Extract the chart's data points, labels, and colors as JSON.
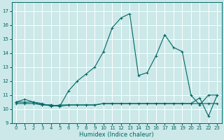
{
  "xlabel": "Humidex (Indice chaleur)",
  "bg_color": "#cce8e8",
  "grid_color": "#ffffff",
  "line_color": "#006666",
  "xlim": [
    -0.5,
    23.5
  ],
  "ylim": [
    9,
    17.6
  ],
  "yticks": [
    9,
    10,
    11,
    12,
    13,
    14,
    15,
    16,
    17
  ],
  "xticks": [
    0,
    1,
    2,
    3,
    4,
    5,
    6,
    7,
    8,
    9,
    10,
    11,
    12,
    13,
    14,
    15,
    16,
    17,
    18,
    19,
    20,
    21,
    22,
    23
  ],
  "series1_y": [
    10.5,
    10.7,
    10.5,
    10.3,
    10.3,
    10.2,
    11.3,
    12.0,
    12.5,
    13.0,
    14.1,
    15.8,
    16.5,
    16.8,
    12.4,
    12.6,
    13.8,
    15.3,
    14.4,
    14.1,
    11.0,
    10.3,
    11.0,
    11.0
  ],
  "series2_y": [
    10.4,
    10.4,
    10.4,
    10.3,
    10.3,
    10.2,
    10.3,
    10.3,
    10.3,
    10.3,
    10.4,
    10.4,
    10.4,
    10.4,
    10.4,
    10.4,
    10.4,
    10.4,
    10.4,
    10.4,
    10.4,
    10.4,
    10.4,
    10.4
  ],
  "series3_y": [
    10.5,
    10.5,
    10.5,
    10.4,
    10.2,
    10.3,
    10.3,
    10.3,
    10.3,
    10.3,
    10.4,
    10.4,
    10.4,
    10.4,
    10.4,
    10.4,
    10.4,
    10.4,
    10.4,
    10.4,
    10.4,
    10.8,
    9.5,
    11.0
  ]
}
